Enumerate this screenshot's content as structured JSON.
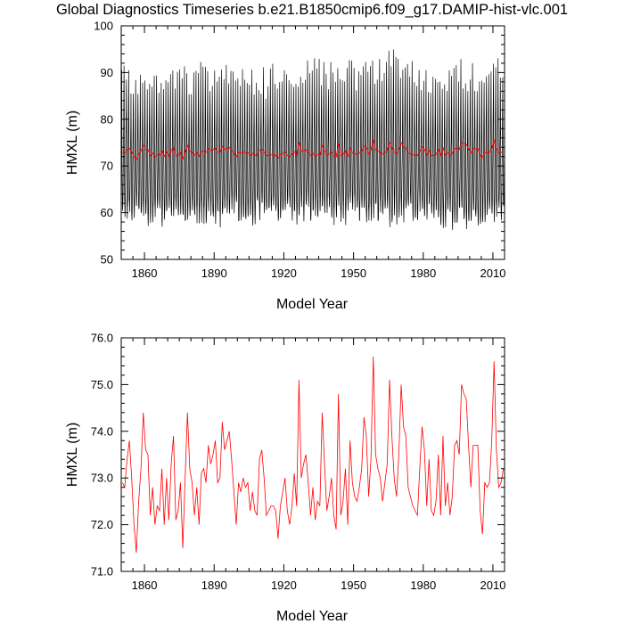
{
  "title": "Global Diagnostics Timeseries b.e21.B1850cmip6.f09_g17.DAMIP-hist-vlc.001",
  "chart_data": [
    {
      "type": "line",
      "xlabel": "Model Year",
      "ylabel": "HMXL (m)",
      "xlim": [
        1850,
        2015
      ],
      "ylim": [
        50,
        100
      ],
      "xticks": [
        "1860",
        "1890",
        "1920",
        "1950",
        "1980",
        "2010"
      ],
      "yticks": [
        "50",
        "60",
        "70",
        "80",
        "90",
        "100"
      ],
      "series": [
        {
          "color": "#000000",
          "resolution": "monthly",
          "envelope": "annual cycle, monthly minima ~56-62 m, maxima ~88-95 m",
          "x": [
            1850,
            1870,
            1890,
            1910,
            1930,
            1950,
            1966,
            1980,
            2000,
            2014
          ],
          "min": [
            57,
            58,
            57,
            58,
            58,
            58,
            57,
            58,
            56,
            57
          ],
          "max": [
            92,
            91,
            92,
            91,
            92,
            92,
            95,
            91,
            93,
            92
          ]
        },
        {
          "color": "#ff0000",
          "resolution": "annual mean",
          "same_as": "lower panel series"
        }
      ]
    },
    {
      "type": "line",
      "xlabel": "Model Year",
      "ylabel": "HMXL (m)",
      "xlim": [
        1850,
        2015
      ],
      "ylim": [
        71,
        76
      ],
      "xticks": [
        "1860",
        "1890",
        "1920",
        "1950",
        "1980",
        "2010"
      ],
      "yticks": [
        "71.0",
        "72.0",
        "73.0",
        "74.0",
        "75.0",
        "76.0"
      ],
      "series": [
        {
          "color": "#ff0000",
          "x_start": 1850,
          "values": [
            72.9,
            72.8,
            73.4,
            73.8,
            73.0,
            72.0,
            71.4,
            72.5,
            73.2,
            74.4,
            73.6,
            73.5,
            72.2,
            72.8,
            72.0,
            72.4,
            72.3,
            73.2,
            72.0,
            73.0,
            72.1,
            73.3,
            73.9,
            72.1,
            72.3,
            72.9,
            71.5,
            73.0,
            74.4,
            73.2,
            72.9,
            72.2,
            72.8,
            72.0,
            73.1,
            73.2,
            72.9,
            73.7,
            73.3,
            73.5,
            73.8,
            72.9,
            73.0,
            74.2,
            73.6,
            73.8,
            74.0,
            73.4,
            72.7,
            72.0,
            72.9,
            72.7,
            73.0,
            72.8,
            72.9,
            72.3,
            72.7,
            72.3,
            72.2,
            73.4,
            73.6,
            73.0,
            72.2,
            72.3,
            72.4,
            72.4,
            72.3,
            71.7,
            72.4,
            72.7,
            73.0,
            72.3,
            72.0,
            72.4,
            73.1,
            72.4,
            75.1,
            73.0,
            73.3,
            73.5,
            72.9,
            72.2,
            72.8,
            72.1,
            72.5,
            72.4,
            74.4,
            73.3,
            72.3,
            72.6,
            73.0,
            72.2,
            71.9,
            74.8,
            72.2,
            72.5,
            73.2,
            72.0,
            73.8,
            72.9,
            72.6,
            72.5,
            72.8,
            73.2,
            74.3,
            73.9,
            72.6,
            73.4,
            75.6,
            73.5,
            73.2,
            73.0,
            72.5,
            72.9,
            73.3,
            75.1,
            73.9,
            73.0,
            72.6,
            73.5,
            75.0,
            74.1,
            73.9,
            72.8,
            72.6,
            72.4,
            72.3,
            72.2,
            73.2,
            74.1,
            73.6,
            72.4,
            73.4,
            72.3,
            72.2,
            72.5,
            73.5,
            72.2,
            73.9,
            72.4,
            72.9,
            72.2,
            72.6,
            73.7,
            73.8,
            73.5,
            75.0,
            74.8,
            74.7,
            73.7,
            72.8,
            73.7,
            73.7,
            73.7,
            72.3,
            71.8,
            72.9,
            72.8,
            72.9,
            73.8,
            75.5,
            73.6,
            72.8,
            72.9,
            73.2
          ]
        }
      ]
    }
  ]
}
